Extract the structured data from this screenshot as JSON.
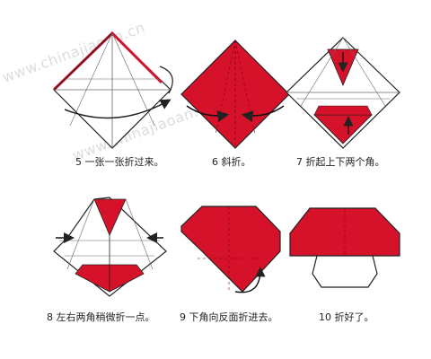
{
  "watermark": {
    "text": "www.chinajiaoan.cn",
    "color": "#d9d9d9"
  },
  "colors": {
    "paper_red": "#d6122b",
    "paper_white": "#ffffff",
    "outline": "#222222",
    "crease": "#666666"
  },
  "steps": [
    {
      "number": "5",
      "caption": "5 一张一张折过来。",
      "icon": "square-paper-fold-arrow-icon"
    },
    {
      "number": "6",
      "caption": "6 斜折。",
      "icon": "red-diamond-diagonal-fold-icon"
    },
    {
      "number": "7",
      "caption": "7 折起上下两个角。",
      "icon": "diamond-fold-corners-icon"
    },
    {
      "number": "8",
      "caption": "8 左右两角稍微折一点。",
      "icon": "diamond-side-corners-icon"
    },
    {
      "number": "9",
      "caption": "9 下角向反面折进去。",
      "icon": "mushroom-cap-fold-back-icon"
    },
    {
      "number": "10",
      "caption": "10 折好了。",
      "icon": "finished-mushroom-icon"
    }
  ]
}
